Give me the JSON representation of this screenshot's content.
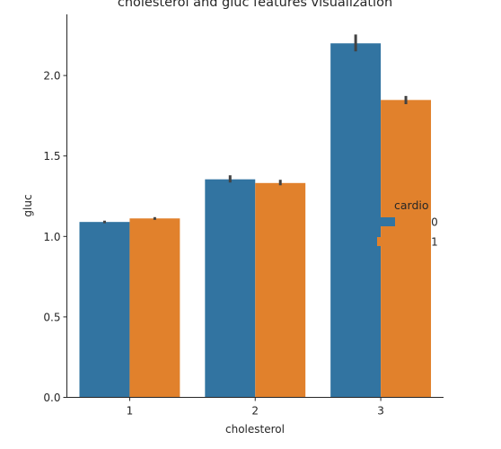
{
  "chart_data": {
    "type": "bar",
    "title": "cholesterol and gluc features visualization",
    "xlabel": "cholesterol",
    "ylabel": "gluc",
    "categories": [
      "1",
      "2",
      "3"
    ],
    "ylim": [
      0,
      2.38
    ],
    "yticks": [
      0.0,
      0.5,
      1.0,
      1.5,
      2.0
    ],
    "ytick_labels": [
      "0.0",
      "0.5",
      "1.0",
      "1.5",
      "2.0"
    ],
    "grid": false,
    "legend": {
      "title": "cardio",
      "placement": "right"
    },
    "series": [
      {
        "name": "0",
        "color": "#3274a1",
        "values": [
          1.09,
          1.355,
          2.2
        ],
        "ci_low": [
          1.082,
          1.335,
          2.15
        ],
        "ci_high": [
          1.098,
          1.38,
          2.255
        ]
      },
      {
        "name": "1",
        "color": "#e1812c",
        "values": [
          1.112,
          1.332,
          1.848
        ],
        "ci_low": [
          1.103,
          1.318,
          1.822
        ],
        "ci_high": [
          1.12,
          1.352,
          1.873
        ]
      }
    ],
    "errorbar_color": "#424242"
  }
}
